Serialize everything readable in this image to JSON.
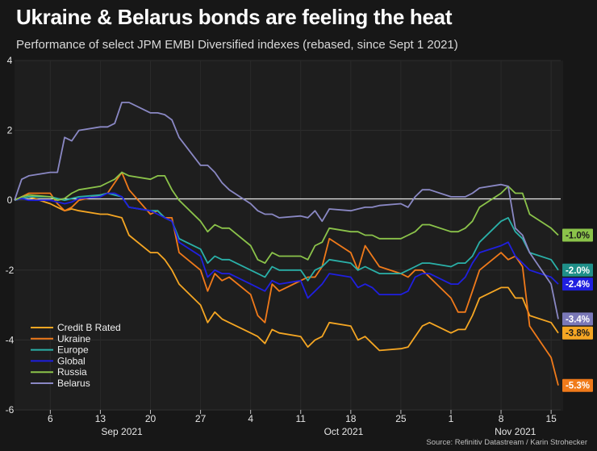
{
  "title": "Ukraine & Belarus bonds are feeling the heat",
  "subtitle": "Performance of select JPM EMBI Diversified indexes (rebased, since Sept 1 2021)",
  "source": "Source: Refinitiv Datastream / Karin Strohecker",
  "chart_data": {
    "type": "line",
    "ylim": [
      -6,
      4
    ],
    "yticks": [
      "4",
      "2",
      "0",
      "-2",
      "-4",
      "-6"
    ],
    "xticks": [
      "6",
      "13",
      "20",
      "27",
      "4",
      "11",
      "18",
      "25",
      "1",
      "8",
      "15"
    ],
    "months": [
      "Sep 2021",
      "Oct 2021",
      "Nov 2021"
    ],
    "x": [
      "2021-09-01",
      "2021-09-02",
      "2021-09-03",
      "2021-09-06",
      "2021-09-07",
      "2021-09-08",
      "2021-09-09",
      "2021-09-10",
      "2021-09-13",
      "2021-09-14",
      "2021-09-15",
      "2021-09-16",
      "2021-09-17",
      "2021-09-20",
      "2021-09-21",
      "2021-09-22",
      "2021-09-23",
      "2021-09-24",
      "2021-09-27",
      "2021-09-28",
      "2021-09-29",
      "2021-09-30",
      "2021-10-01",
      "2021-10-04",
      "2021-10-05",
      "2021-10-06",
      "2021-10-07",
      "2021-10-08",
      "2021-10-11",
      "2021-10-12",
      "2021-10-13",
      "2021-10-14",
      "2021-10-15",
      "2021-10-18",
      "2021-10-19",
      "2021-10-20",
      "2021-10-21",
      "2021-10-22",
      "2021-10-25",
      "2021-10-26",
      "2021-10-27",
      "2021-10-28",
      "2021-10-29",
      "2021-11-01",
      "2021-11-02",
      "2021-11-03",
      "2021-11-04",
      "2021-11-05",
      "2021-11-08",
      "2021-11-09",
      "2021-11-10",
      "2021-11-11",
      "2021-11-12",
      "2021-11-15",
      "2021-11-16"
    ],
    "series": [
      {
        "name": "Credit B Rated",
        "color": "#f5a623",
        "end_label": "-3.8%",
        "values": [
          0,
          0.05,
          0.1,
          -0.1,
          -0.2,
          -0.3,
          -0.25,
          -0.3,
          -0.4,
          -0.4,
          -0.45,
          -0.5,
          -1.0,
          -1.5,
          -1.5,
          -1.7,
          -2.0,
          -2.4,
          -3.0,
          -3.5,
          -3.2,
          -3.4,
          -3.5,
          -3.8,
          -3.9,
          -4.1,
          -3.7,
          -3.8,
          -3.9,
          -4.2,
          -4.0,
          -3.9,
          -3.5,
          -3.6,
          -4.0,
          -3.9,
          -4.1,
          -4.3,
          -4.25,
          -4.2,
          -3.9,
          -3.6,
          -3.5,
          -3.8,
          -3.7,
          -3.7,
          -3.3,
          -2.8,
          -2.5,
          -2.5,
          -2.8,
          -2.8,
          -3.3,
          -3.5,
          -3.8
        ]
      },
      {
        "name": "Ukraine",
        "color": "#f07a1a",
        "end_label": "-5.3%",
        "values": [
          0,
          0.1,
          0.2,
          0.2,
          -0.1,
          -0.3,
          -0.2,
          0.0,
          0.15,
          0.2,
          0.5,
          0.8,
          0.3,
          -0.4,
          -0.3,
          -0.5,
          -0.5,
          -1.5,
          -2.0,
          -2.6,
          -2.1,
          -2.3,
          -2.2,
          -2.7,
          -3.3,
          -3.5,
          -2.4,
          -2.6,
          -2.3,
          -2.2,
          -2.2,
          -1.9,
          -1.1,
          -1.5,
          -2.0,
          -1.3,
          -1.6,
          -1.9,
          -2.1,
          -2.2,
          -2.0,
          -2.0,
          -2.2,
          -2.8,
          -3.2,
          -3.2,
          -2.6,
          -2.0,
          -1.5,
          -1.7,
          -1.6,
          -1.9,
          -3.6,
          -4.5,
          -5.3
        ]
      },
      {
        "name": "Europe",
        "color": "#2ab0a8",
        "end_label": "-2.0%",
        "values": [
          0,
          0.05,
          0.1,
          0.1,
          0.05,
          0.0,
          0.05,
          0.1,
          0.15,
          0.2,
          0.15,
          0.1,
          -0.2,
          -0.3,
          -0.3,
          -0.5,
          -0.6,
          -1.1,
          -1.4,
          -1.8,
          -1.6,
          -1.7,
          -1.7,
          -2.0,
          -2.1,
          -2.2,
          -1.9,
          -2.0,
          -2.0,
          -2.3,
          -2.0,
          -1.9,
          -1.7,
          -1.8,
          -2.0,
          -1.9,
          -2.0,
          -2.1,
          -2.1,
          -2.0,
          -1.9,
          -1.8,
          -1.8,
          -1.9,
          -1.8,
          -1.8,
          -1.6,
          -1.2,
          -0.6,
          -0.5,
          -0.9,
          -1.1,
          -1.5,
          -1.7,
          -2.0
        ]
      },
      {
        "name": "Global",
        "color": "#1f1fe0",
        "end_label": "-2.4%",
        "values": [
          0,
          0.05,
          0.0,
          0.0,
          -0.05,
          -0.1,
          -0.05,
          0.05,
          0.1,
          0.2,
          0.2,
          0.1,
          -0.2,
          -0.3,
          -0.4,
          -0.5,
          -0.6,
          -1.2,
          -1.6,
          -2.2,
          -2.0,
          -2.1,
          -2.1,
          -2.4,
          -2.5,
          -2.6,
          -2.3,
          -2.4,
          -2.3,
          -2.8,
          -2.6,
          -2.4,
          -2.1,
          -2.2,
          -2.5,
          -2.4,
          -2.5,
          -2.7,
          -2.7,
          -2.6,
          -2.2,
          -2.1,
          -2.1,
          -2.4,
          -2.4,
          -2.2,
          -1.8,
          -1.5,
          -1.3,
          -1.2,
          -1.6,
          -1.8,
          -2.0,
          -2.2,
          -2.4
        ]
      },
      {
        "name": "Russia",
        "color": "#8bc34a",
        "end_label": "-1.0%",
        "values": [
          0,
          0.1,
          0.15,
          0.1,
          0.0,
          0.05,
          0.2,
          0.3,
          0.4,
          0.5,
          0.6,
          0.8,
          0.7,
          0.6,
          0.7,
          0.7,
          0.3,
          0.0,
          -0.6,
          -0.9,
          -0.7,
          -0.8,
          -0.8,
          -1.3,
          -1.7,
          -1.8,
          -1.5,
          -1.6,
          -1.6,
          -1.7,
          -1.3,
          -1.2,
          -0.8,
          -0.9,
          -0.9,
          -1.0,
          -1.0,
          -1.1,
          -1.1,
          -1.0,
          -0.9,
          -0.7,
          -0.7,
          -0.9,
          -0.9,
          -0.8,
          -0.6,
          -0.2,
          0.2,
          0.4,
          0.2,
          0.2,
          -0.4,
          -0.8,
          -1.0
        ]
      },
      {
        "name": "Belarus",
        "color": "#8a88c4",
        "end_label": "-3.4%",
        "values": [
          0,
          0.6,
          0.7,
          0.8,
          0.8,
          1.8,
          1.7,
          2.0,
          2.1,
          2.1,
          2.2,
          2.8,
          2.8,
          2.5,
          2.5,
          2.45,
          2.3,
          1.8,
          1.0,
          1.0,
          0.8,
          0.5,
          0.3,
          -0.1,
          -0.3,
          -0.4,
          -0.4,
          -0.5,
          -0.45,
          -0.5,
          -0.3,
          -0.6,
          -0.25,
          -0.3,
          -0.25,
          -0.2,
          -0.2,
          -0.15,
          -0.1,
          -0.2,
          0.1,
          0.3,
          0.3,
          0.1,
          0.1,
          0.1,
          0.2,
          0.35,
          0.45,
          0.4,
          -0.8,
          -1.0,
          -1.5,
          -2.4,
          -3.4
        ]
      }
    ],
    "legend_position": "bottom-left"
  }
}
